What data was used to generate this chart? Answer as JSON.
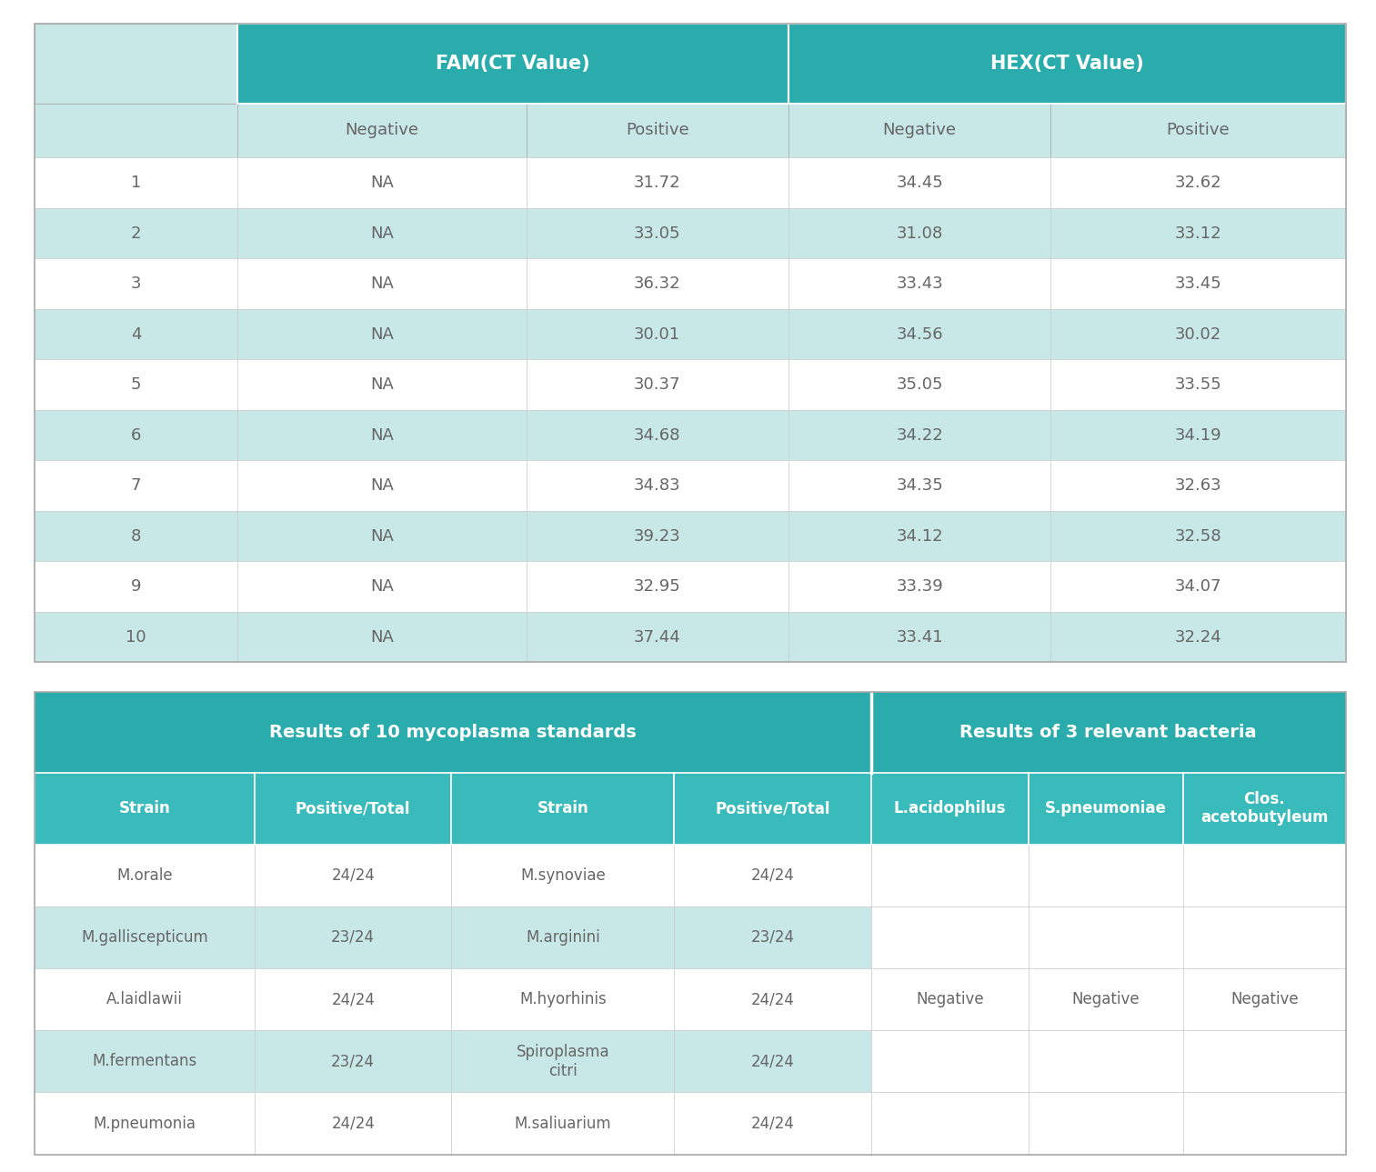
{
  "table1": {
    "header1": [
      "",
      "FAM(CT Value)",
      "HEX(CT Value)"
    ],
    "header2": [
      "",
      "Negative",
      "Positive",
      "Negative",
      "Positive"
    ],
    "rows": [
      [
        "1",
        "NA",
        "31.72",
        "34.45",
        "32.62"
      ],
      [
        "2",
        "NA",
        "33.05",
        "31.08",
        "33.12"
      ],
      [
        "3",
        "NA",
        "36.32",
        "33.43",
        "33.45"
      ],
      [
        "4",
        "NA",
        "30.01",
        "34.56",
        "30.02"
      ],
      [
        "5",
        "NA",
        "30.37",
        "35.05",
        "33.55"
      ],
      [
        "6",
        "NA",
        "34.68",
        "34.22",
        "34.19"
      ],
      [
        "7",
        "NA",
        "34.83",
        "34.35",
        "32.63"
      ],
      [
        "8",
        "NA",
        "39.23",
        "34.12",
        "32.58"
      ],
      [
        "9",
        "NA",
        "32.95",
        "33.39",
        "34.07"
      ],
      [
        "10",
        "NA",
        "37.44",
        "33.41",
        "32.24"
      ]
    ]
  },
  "table2_left": {
    "title": "Results of 10 mycoplasma standards",
    "header": [
      "Strain",
      "Positive/Total",
      "Strain",
      "Positive/Total"
    ],
    "rows": [
      [
        "M.orale",
        "24/24",
        "M.synoviae",
        "24/24"
      ],
      [
        "M.galliscepticum",
        "23/24",
        "M.arginini",
        "23/24"
      ],
      [
        "A.laidlawii",
        "24/24",
        "M.hyorhinis",
        "24/24"
      ],
      [
        "M.fermentans",
        "23/24",
        "Spiroplasma\ncitri",
        "24/24"
      ],
      [
        "M.pneumonia",
        "24/24",
        "M.saliuarium",
        "24/24"
      ]
    ]
  },
  "table2_right": {
    "title": "Results of 3 relevant bacteria",
    "header": [
      "L.acidophilus",
      "S.pneumoniae",
      "Clos.\nacetobutyleum"
    ],
    "rows": [
      [
        "",
        "",
        ""
      ],
      [
        "",
        "",
        ""
      ],
      [
        "Negative",
        "Negative",
        "Negative"
      ],
      [
        "",
        "",
        ""
      ],
      [
        "",
        "",
        ""
      ]
    ]
  },
  "colors": {
    "teal_dark": "#2AACAC",
    "teal_medium": "#3ABBBB",
    "teal_light": "#C8E8E8",
    "white": "#FFFFFF",
    "text_dark": "#666666",
    "text_white": "#FFFFFF",
    "border_light": "#CCCCCC",
    "border_mid": "#AAAAAA"
  },
  "fig_width": 15.13,
  "fig_height": 12.89,
  "dpi": 100
}
